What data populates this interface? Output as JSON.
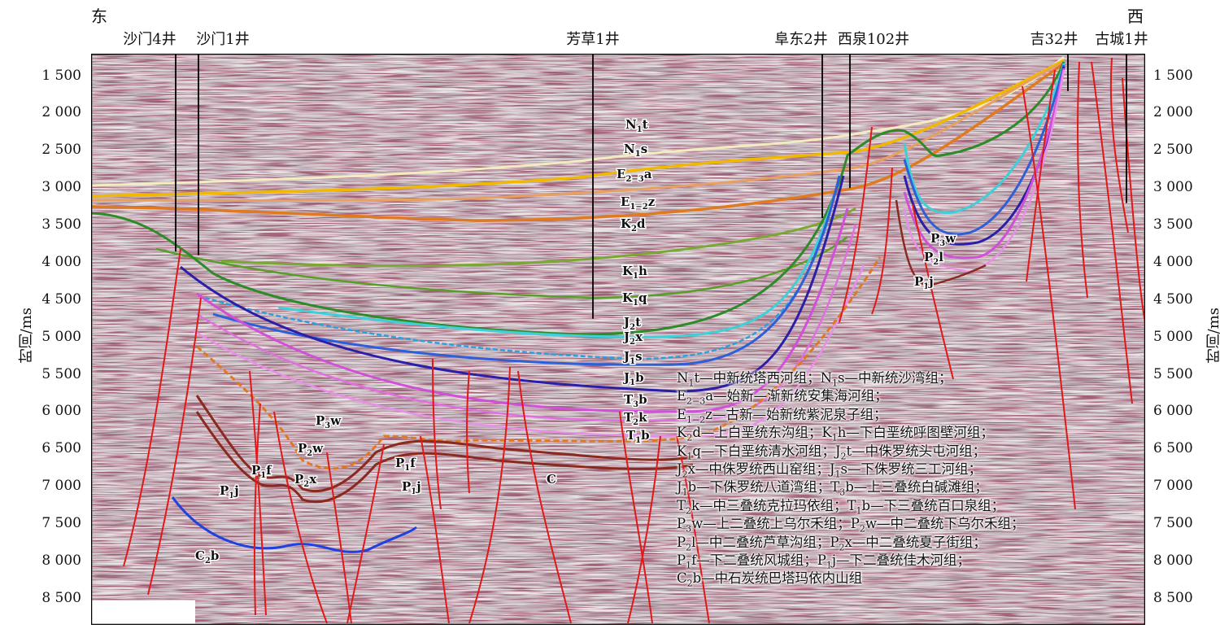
{
  "direction": {
    "east": "东",
    "west": "西"
  },
  "wells": [
    {
      "name": "沙门4井",
      "time_top": 1200,
      "time_bottom": 3850
    },
    {
      "name": "沙门1井",
      "time_top": 1200,
      "time_bottom": 3900
    },
    {
      "name": "芳草1井",
      "time_top": 1200,
      "time_bottom": 4750
    },
    {
      "name": "阜东2井",
      "time_top": 1200,
      "time_bottom": 3400
    },
    {
      "name": "西泉102井",
      "time_top": 1200,
      "time_bottom": 3000
    },
    {
      "name": "吉32井",
      "time_top": 1200,
      "time_bottom": 1700
    },
    {
      "name": "古城1井",
      "time_top": 1200,
      "time_bottom": 3200
    }
  ],
  "axis": {
    "title": "时间/ms",
    "ticks": [
      "1 500",
      "2 000",
      "2 500",
      "3 000",
      "3 500",
      "4 000",
      "4 500",
      "5 000",
      "5 500",
      "6 000",
      "6 500",
      "7 000",
      "7 500",
      "8 000",
      "8 500"
    ],
    "tick_values": [
      1500,
      2000,
      2500,
      3000,
      3500,
      4000,
      4500,
      5000,
      5500,
      6000,
      6500,
      7000,
      7500,
      8000,
      8500
    ],
    "range": [
      1200,
      8850
    ]
  },
  "horizon_colors": {
    "N1t": "#f3ecc0",
    "N1s": "#f0b800",
    "E23a": "#e8a060",
    "E12z": "#e07a20",
    "K2d": "#7aa832",
    "K1h": "#5a9e2a",
    "K1q": "#2f8a2a",
    "J2t": "#3ed0d8",
    "J2x": "#2aa0e0",
    "J1s": "#2e5fd8",
    "J1b": "#2b1fa8",
    "T3b": "#d050d8",
    "T2k": "#e070e0",
    "T1b": "#e890e8",
    "P": "#e07820",
    "Pbase": "#8a2a1e",
    "C2b": "#2040e0",
    "fault": "#e01818"
  },
  "horizon_labels": {
    "N1t": {
      "base": "N",
      "sub": "1",
      "rest": "t"
    },
    "N1s": {
      "base": "N",
      "sub": "1",
      "rest": "s"
    },
    "E23a": {
      "base": "E",
      "sub": "2−3",
      "rest": "a"
    },
    "E12z": {
      "base": "E",
      "sub": "1−2",
      "rest": "z"
    },
    "K2d": {
      "base": "K",
      "sub": "2",
      "rest": "d"
    },
    "K1h": {
      "base": "K",
      "sub": "1",
      "rest": "h"
    },
    "K1q": {
      "base": "K",
      "sub": "1",
      "rest": "q"
    },
    "J2t": {
      "base": "J",
      "sub": "2",
      "rest": "t"
    },
    "J2x": {
      "base": "J",
      "sub": "2",
      "rest": "x"
    },
    "J1s": {
      "base": "J",
      "sub": "1",
      "rest": "s"
    },
    "J1b": {
      "base": "J",
      "sub": "1",
      "rest": "b"
    },
    "T3b": {
      "base": "T",
      "sub": "3",
      "rest": "b"
    },
    "T2k": {
      "base": "T",
      "sub": "2",
      "rest": "k"
    },
    "T1b": {
      "base": "T",
      "sub": "1",
      "rest": "b"
    },
    "P3w_e": {
      "base": "P",
      "sub": "3",
      "rest": "w"
    },
    "P2w_e": {
      "base": "P",
      "sub": "2",
      "rest": "w"
    },
    "P1f_e": {
      "base": "P",
      "sub": "1",
      "rest": "f"
    },
    "P2x_e": {
      "base": "P",
      "sub": "2",
      "rest": "x"
    },
    "P1j_e": {
      "base": "P",
      "sub": "1",
      "rest": "j"
    },
    "P1f_c": {
      "base": "P",
      "sub": "1",
      "rest": "f"
    },
    "P1j_c": {
      "base": "P",
      "sub": "1",
      "rest": "j"
    },
    "C": {
      "base": "C",
      "sub": "",
      "rest": ""
    },
    "C2b": {
      "base": "C",
      "sub": "2",
      "rest": "b"
    },
    "P3w_w": {
      "base": "P",
      "sub": "3",
      "rest": "w"
    },
    "P2l_w": {
      "base": "P",
      "sub": "2",
      "rest": "l"
    },
    "P1j_w": {
      "base": "P",
      "sub": "1",
      "rest": "j"
    }
  },
  "legend": [
    [
      {
        "t": "N"
      },
      {
        "s": "1"
      },
      {
        "t": "t—中新统塔西河组；N"
      },
      {
        "s": "1"
      },
      {
        "t": "s—中新统沙湾组；"
      }
    ],
    [
      {
        "t": "E"
      },
      {
        "s": "2−3"
      },
      {
        "t": "a—始新—渐新统安集海河组；"
      }
    ],
    [
      {
        "t": "E"
      },
      {
        "s": "1−2"
      },
      {
        "t": "z—古新—始新统紫泥泉子组；"
      }
    ],
    [
      {
        "t": "K"
      },
      {
        "s": "2"
      },
      {
        "t": "d—上白垩统东沟组；K"
      },
      {
        "s": "1"
      },
      {
        "t": "h—下白垩统呼图壁河组；"
      }
    ],
    [
      {
        "t": "K"
      },
      {
        "s": "1"
      },
      {
        "t": "q—下白垩统清水河组；J"
      },
      {
        "s": "2"
      },
      {
        "t": "t—中侏罗统头屯河组；"
      }
    ],
    [
      {
        "t": "J"
      },
      {
        "s": "2"
      },
      {
        "t": "x—中侏罗统西山窑组；J"
      },
      {
        "s": "1"
      },
      {
        "t": "s—下侏罗统三工河组；"
      }
    ],
    [
      {
        "t": "J"
      },
      {
        "s": "1"
      },
      {
        "t": "b—下侏罗统八道湾组；T"
      },
      {
        "s": "3"
      },
      {
        "t": "b—上三叠统白碱滩组；"
      }
    ],
    [
      {
        "t": "T"
      },
      {
        "s": "2"
      },
      {
        "t": "k—中三叠统克拉玛依组；T"
      },
      {
        "s": "1"
      },
      {
        "t": "b—下三叠统百口泉组；"
      }
    ],
    [
      {
        "t": "P"
      },
      {
        "s": "3"
      },
      {
        "t": "w—上二叠统上乌尔禾组；P"
      },
      {
        "s": "2"
      },
      {
        "t": "w—中二叠统下乌尔禾组；"
      }
    ],
    [
      {
        "t": "P"
      },
      {
        "s": "2"
      },
      {
        "t": "l—中二叠统芦草沟组；P"
      },
      {
        "s": "2"
      },
      {
        "t": "x—中二叠统夏子街组；"
      }
    ],
    [
      {
        "t": "P"
      },
      {
        "s": "1"
      },
      {
        "t": "f—下二叠统风城组；P"
      },
      {
        "s": "1"
      },
      {
        "t": "j—下二叠统佳木河组；"
      }
    ],
    [
      {
        "t": "C"
      },
      {
        "s": "2"
      },
      {
        "t": "b—中石炭统巴塔玛依内山组"
      }
    ]
  ]
}
